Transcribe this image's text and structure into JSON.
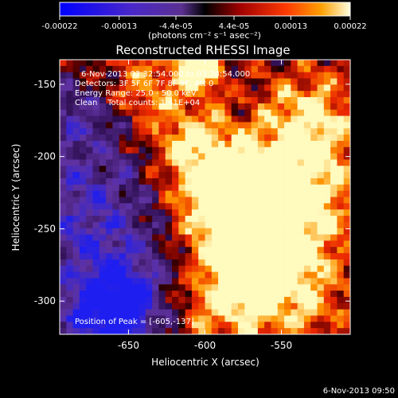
{
  "colorbar": {
    "tick_labels": [
      "-0.00022",
      "-0.00013",
      "-4.4e-05",
      "4.4e-05",
      "0.00013",
      "0.00022"
    ],
    "tick_values": [
      -0.00022,
      -0.00013,
      -4.4e-05,
      4.4e-05,
      0.00013,
      0.00022
    ],
    "range": [
      -0.00022,
      0.00022
    ],
    "units_label": "(photons cm⁻² s⁻¹ asec⁻²)"
  },
  "plot": {
    "title": "Reconstructed RHESSI Image",
    "annotations": [
      "6-Nov-2013 03:32:54.000 to 03:38:54.000",
      "Detectors: 3F 5F 6F 7F 8F 9F, Att 0",
      "Energy Range: 25.0 - 50.0 keV",
      "Clean    Total counts: 1.41E+04"
    ],
    "peak_label": "Position of Peak = [-605,-137]",
    "timestamp": "6-Nov-2013 09:50"
  },
  "chart_data": {
    "type": "heatmap",
    "title": "Reconstructed RHESSI Image",
    "xlabel": "Heliocentric X (arcsec)",
    "ylabel": "Heliocentric Y (arcsec)",
    "xlim": [
      -695,
      -505
    ],
    "ylim": [
      -323,
      -133
    ],
    "x_ticks": [
      -650,
      -600,
      -550
    ],
    "y_ticks": [
      -300,
      -250,
      -200,
      -150
    ],
    "x_tick_labels": [
      "-650",
      "-600",
      "-550"
    ],
    "y_tick_labels": [
      "-300",
      "-250",
      "-200",
      "-150"
    ],
    "peak_position": [
      -605,
      -137
    ],
    "colormap": "hot-blue diverging",
    "zero_color": "#000000",
    "negative_colors": [
      "#0000ff",
      "#6a3aaa"
    ],
    "positive_colors": [
      "#d00000",
      "#ff6000",
      "#ffffd0"
    ]
  }
}
